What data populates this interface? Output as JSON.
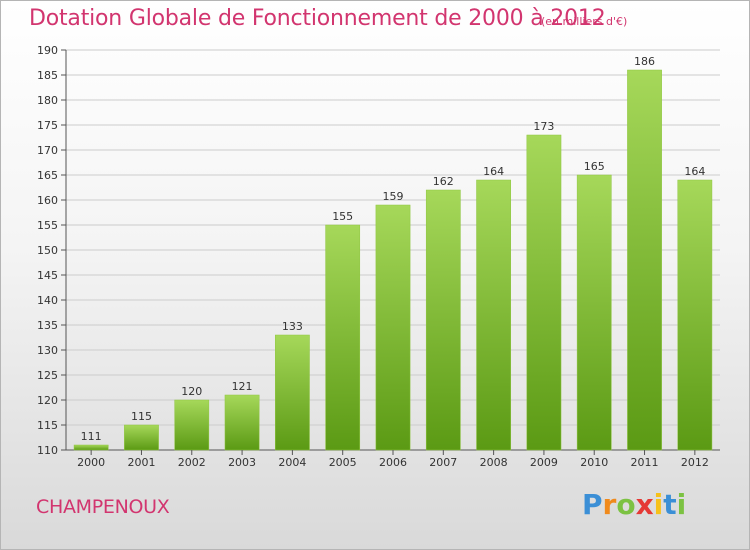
{
  "header": {
    "title": "Dotation Globale de Fonctionnement de 2000 à 2012",
    "subtitle": "(en milliers d'€)"
  },
  "footer": {
    "commune": "CHAMPENOUX",
    "logo_text": "Proxiti",
    "logo_colors": [
      "#3b8fd6",
      "#f08a1c",
      "#7cc242",
      "#e53935",
      "#f6c11a",
      "#3b8fd6",
      "#7cc242"
    ]
  },
  "colors": {
    "bar_top": "#a6d85a",
    "bar_bottom": "#5b9a14",
    "grid": "#cccccc",
    "text_accent": "#d2356f"
  },
  "chart_data": {
    "type": "bar",
    "title": "Dotation Globale de Fonctionnement de 2000 à 2012",
    "subtitle": "(en milliers d'€)",
    "categories": [
      "2000",
      "2001",
      "2002",
      "2003",
      "2004",
      "2005",
      "2006",
      "2007",
      "2008",
      "2009",
      "2010",
      "2011",
      "2012"
    ],
    "values": [
      111,
      115,
      120,
      121,
      133,
      155,
      159,
      162,
      164,
      173,
      165,
      186,
      164
    ],
    "ylim": [
      110,
      190
    ],
    "yticks": [
      110,
      115,
      120,
      125,
      130,
      135,
      140,
      145,
      150,
      155,
      160,
      165,
      170,
      175,
      180,
      185,
      190
    ],
    "grid": true,
    "xlabel": "",
    "ylabel": ""
  }
}
